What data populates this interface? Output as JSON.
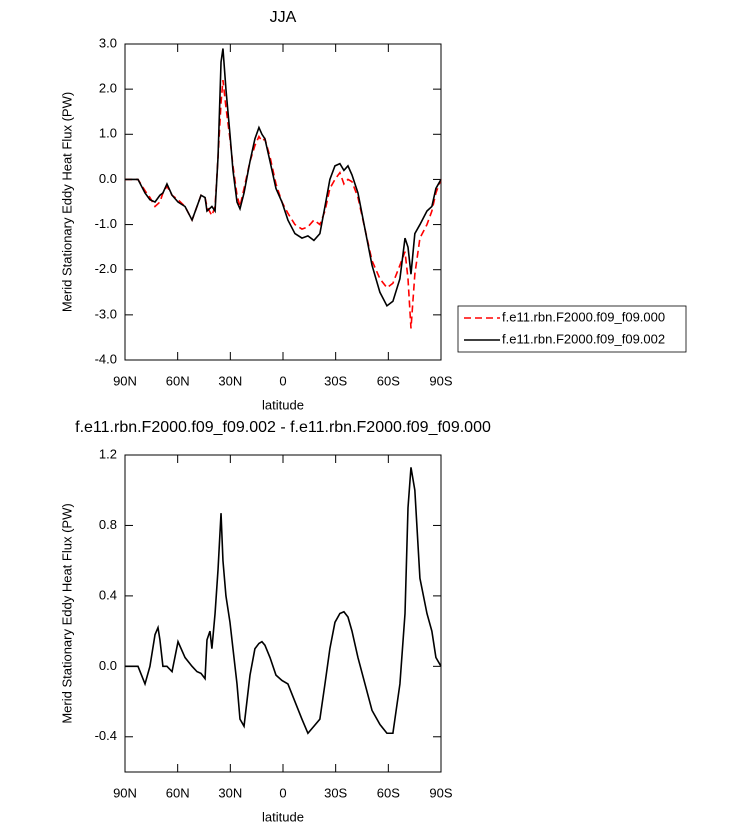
{
  "chart_data": [
    {
      "type": "line",
      "title": "JJA",
      "xlabel": "latitude",
      "ylabel": "Merid Stationary Eddy Heat Flux (PW)",
      "x": [
        90,
        82.6,
        78.6,
        75.8,
        72.9,
        70.1,
        68.4,
        66.1,
        63.2,
        59.8,
        55.8,
        51.8,
        49,
        46.7,
        44.4,
        43.3,
        40.5,
        38.7,
        37,
        35.3,
        34.2,
        32.5,
        30.2,
        28.5,
        26.2,
        24.5,
        22.2,
        18.8,
        16,
        13.7,
        12,
        10.3,
        7.4,
        4,
        0.6,
        -2.8,
        -6.8,
        -10.8,
        -14.2,
        -17.6,
        -21,
        -23.9,
        -26.7,
        -29.6,
        -32.4,
        -34.7,
        -37,
        -39.3,
        -42.7,
        -46.7,
        -50.7,
        -55.2,
        -59.2,
        -62.6,
        -66.6,
        -69.5,
        -71.2,
        -72.9,
        -75.1,
        -78,
        -82,
        -84.8,
        -87.1,
        -90
      ],
      "series": [
        {
          "name": "f.e11.rbn.F2000.f09_f09.000",
          "color": "#ff0000",
          "dashed": true,
          "values": [
            0,
            0,
            -0.25,
            -0.4,
            -0.6,
            -0.5,
            -0.3,
            -0.15,
            -0.35,
            -0.45,
            -0.6,
            -0.9,
            -0.6,
            -0.35,
            -0.4,
            -0.6,
            -0.8,
            -0.6,
            0.5,
            1.7,
            2.2,
            1.6,
            0.9,
            0.3,
            -0.35,
            -0.6,
            -0.2,
            0.4,
            0.75,
            0.95,
            0.85,
            0.9,
            0.5,
            -0.1,
            -0.5,
            -0.75,
            -1.0,
            -1.1,
            -1.05,
            -0.9,
            -1.0,
            -0.7,
            -0.2,
            0.0,
            0.15,
            -0.1,
            0.0,
            -0.05,
            -0.4,
            -1.1,
            -1.8,
            -2.2,
            -2.4,
            -2.3,
            -1.9,
            -1.6,
            -2.2,
            -3.3,
            -2.1,
            -1.3,
            -1.0,
            -0.7,
            -0.3,
            0
          ]
        },
        {
          "name": "f.e11.rbn.F2000.f09_f09.002",
          "color": "#000000",
          "dashed": false,
          "values": [
            0,
            0,
            -0.3,
            -0.45,
            -0.5,
            -0.35,
            -0.3,
            -0.1,
            -0.35,
            -0.5,
            -0.6,
            -0.9,
            -0.6,
            -0.35,
            -0.4,
            -0.7,
            -0.6,
            -0.7,
            0.5,
            2.6,
            2.9,
            2.0,
            1.0,
            0.2,
            -0.5,
            -0.65,
            -0.3,
            0.4,
            0.9,
            1.15,
            1.0,
            0.9,
            0.4,
            -0.2,
            -0.5,
            -0.9,
            -1.2,
            -1.3,
            -1.25,
            -1.35,
            -1.2,
            -0.6,
            0.0,
            0.3,
            0.35,
            0.2,
            0.3,
            0.1,
            -0.3,
            -1.1,
            -1.9,
            -2.5,
            -2.8,
            -2.7,
            -2.2,
            -1.3,
            -1.5,
            -2.1,
            -1.2,
            -1.0,
            -0.7,
            -0.6,
            -0.2,
            0
          ]
        }
      ],
      "xlim": [
        90,
        -90
      ],
      "xticks": [
        {
          "value": 90,
          "label": "90N"
        },
        {
          "value": 60,
          "label": "60N"
        },
        {
          "value": 30,
          "label": "30N"
        },
        0,
        {
          "value": -30,
          "label": "30S"
        },
        {
          "value": -60,
          "label": "60S"
        },
        {
          "value": -90,
          "label": "90S"
        }
      ],
      "ylim": [
        -4,
        3
      ],
      "yticks": [
        {
          "value": 3,
          "label": "3.0"
        },
        {
          "value": 2,
          "label": "2.0"
        },
        {
          "value": 1,
          "label": "1.0"
        },
        {
          "value": 0,
          "label": "0.0"
        },
        {
          "value": -1,
          "label": "-1.0"
        },
        {
          "value": -2,
          "label": "-2.0"
        },
        {
          "value": -3,
          "label": "-3.0"
        },
        {
          "value": -4,
          "label": "-4.0"
        }
      ],
      "legend": "right"
    },
    {
      "type": "line",
      "title": "f.e11.rbn.F2000.f09_f09.002 - f.e11.rbn.F2000.f09_f09.000",
      "xlabel": "latitude",
      "ylabel": "Merid Stationary Eddy Heat Flux (PW)",
      "x": [
        90,
        82.6,
        78.6,
        75.8,
        72.9,
        71.2,
        70.1,
        68.4,
        66.1,
        63.2,
        59.8,
        55.8,
        51.8,
        49,
        46.7,
        44.4,
        43.3,
        41.6,
        40.5,
        38.7,
        37,
        35.3,
        34.2,
        32.5,
        30.2,
        28.5,
        26.2,
        24.5,
        22.2,
        18.8,
        16,
        13.7,
        12,
        10.3,
        7.4,
        4,
        0.6,
        -2.8,
        -6.8,
        -10.8,
        -14.2,
        -17.6,
        -21,
        -23.9,
        -26.7,
        -29.6,
        -32.4,
        -34.7,
        -37,
        -39.3,
        -42.7,
        -46.7,
        -50.7,
        -55.2,
        -59.2,
        -62.6,
        -66.6,
        -69.5,
        -71.2,
        -72.9,
        -75.1,
        -78,
        -82,
        -84.8,
        -87.1,
        -90
      ],
      "series": [
        {
          "color": "#000000",
          "dashed": false,
          "values": [
            0,
            0,
            -0.1,
            0.0,
            0.18,
            0.22,
            0.15,
            0.0,
            0.0,
            -0.03,
            0.14,
            0.05,
            0.0,
            -0.03,
            -0.04,
            -0.07,
            0.15,
            0.2,
            0.1,
            0.3,
            0.55,
            0.87,
            0.6,
            0.4,
            0.25,
            0.1,
            -0.1,
            -0.3,
            -0.34,
            -0.05,
            0.1,
            0.13,
            0.14,
            0.12,
            0.05,
            -0.05,
            -0.08,
            -0.1,
            -0.2,
            -0.3,
            -0.38,
            -0.34,
            -0.3,
            -0.1,
            0.1,
            0.25,
            0.3,
            0.31,
            0.28,
            0.2,
            0.05,
            -0.1,
            -0.25,
            -0.33,
            -0.38,
            -0.38,
            -0.1,
            0.3,
            0.9,
            1.13,
            1.0,
            0.5,
            0.3,
            0.2,
            0.05,
            0
          ]
        }
      ],
      "xlim": [
        90,
        -90
      ],
      "xticks": [
        {
          "value": 90,
          "label": "90N"
        },
        {
          "value": 60,
          "label": "60N"
        },
        {
          "value": 30,
          "label": "30N"
        },
        0,
        {
          "value": -30,
          "label": "30S"
        },
        {
          "value": -60,
          "label": "60S"
        },
        {
          "value": -90,
          "label": "90S"
        }
      ],
      "ylim": [
        -0.6,
        1.2
      ],
      "yticks": [
        1.2,
        0.8,
        0.4,
        {
          "value": 0,
          "label": "0.0"
        },
        -0.4
      ]
    }
  ]
}
